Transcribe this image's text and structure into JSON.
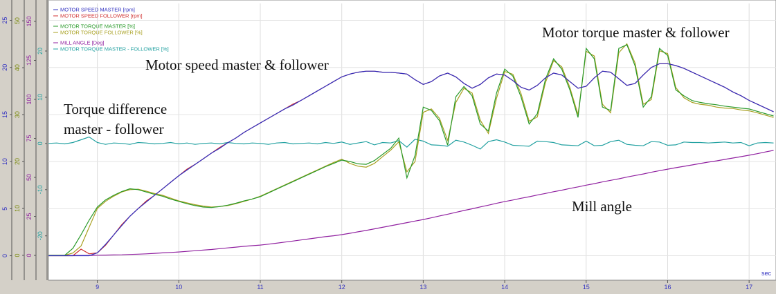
{
  "chart_data": {
    "type": "line",
    "x_label": "sec",
    "annotations": [
      "Motor speed master & follower",
      "Torque difference",
      "master - follower",
      "Motor torque master & follower",
      "Mill angle"
    ],
    "xlim": [
      8.4,
      17.33
    ],
    "xticks": [
      9,
      10,
      11,
      12,
      13,
      14,
      15,
      16,
      17
    ],
    "grid": true,
    "y_axes": [
      {
        "color": "#3030c0",
        "ylim": [
          -2.6,
          26.8
        ],
        "yticks": [
          0,
          5,
          10,
          15,
          20,
          25
        ]
      },
      {
        "color": "#7a8a10",
        "ylim": [
          -5.3,
          53.7
        ],
        "yticks": [
          0,
          10,
          20,
          30,
          40,
          50
        ]
      },
      {
        "color": "#9020a0",
        "ylim": [
          -15.9,
          161.5
        ],
        "yticks": [
          0,
          25,
          50,
          75,
          100,
          125,
          150
        ]
      },
      {
        "color": "#20a0a0",
        "ylim": [
          -29.6,
          30.3
        ],
        "yticks": [
          -20,
          -10,
          0,
          10,
          20
        ]
      }
    ],
    "x": [
      8.4,
      8.5,
      8.6,
      8.7,
      8.8,
      8.9,
      9.0,
      9.1,
      9.2,
      9.3,
      9.4,
      9.5,
      9.6,
      9.7,
      9.8,
      9.9,
      10.0,
      10.1,
      10.2,
      10.3,
      10.4,
      10.5,
      10.6,
      10.7,
      10.8,
      10.9,
      11.0,
      11.1,
      11.2,
      11.3,
      11.4,
      11.5,
      11.6,
      11.7,
      11.8,
      11.9,
      12.0,
      12.1,
      12.2,
      12.3,
      12.4,
      12.5,
      12.6,
      12.7,
      12.8,
      12.9,
      13.0,
      13.1,
      13.2,
      13.3,
      13.4,
      13.5,
      13.6,
      13.7,
      13.8,
      13.9,
      14.0,
      14.1,
      14.2,
      14.3,
      14.4,
      14.5,
      14.6,
      14.7,
      14.8,
      14.9,
      15.0,
      15.1,
      15.2,
      15.3,
      15.4,
      15.5,
      15.6,
      15.7,
      15.8,
      15.9,
      16.0,
      16.1,
      16.2,
      16.3,
      16.4,
      16.5,
      16.6,
      16.7,
      16.8,
      16.9,
      17.0,
      17.1,
      17.2,
      17.3
    ],
    "series": [
      {
        "name": "MOTOR SPEED MASTER [rpm]",
        "color": "#3030c0",
        "axis": 0,
        "values": [
          0,
          0,
          0,
          0,
          0,
          0,
          0.3,
          1.2,
          2.2,
          3.2,
          4.2,
          5.0,
          5.7,
          6.4,
          7.1,
          7.8,
          8.5,
          9.1,
          9.7,
          10.3,
          10.9,
          11.4,
          12.0,
          12.5,
          13.1,
          13.6,
          14.1,
          14.6,
          15.1,
          15.6,
          16.0,
          16.5,
          17.0,
          17.5,
          18.0,
          18.5,
          19.0,
          19.3,
          19.5,
          19.6,
          19.6,
          19.5,
          19.5,
          19.4,
          19.3,
          18.7,
          18.2,
          18.5,
          19.1,
          19.4,
          19.0,
          18.3,
          17.8,
          18.2,
          18.9,
          19.3,
          19.2,
          18.6,
          17.9,
          17.6,
          18.1,
          18.9,
          19.4,
          19.2,
          18.5,
          17.8,
          18.0,
          18.9,
          19.6,
          19.5,
          18.8,
          18.1,
          18.3,
          19.2,
          20.0,
          20.4,
          20.4,
          20.2,
          19.9,
          19.5,
          19.1,
          18.7,
          18.3,
          17.9,
          17.4,
          17.0,
          16.5,
          16.1,
          15.7,
          15.3
        ]
      },
      {
        "name": "MOTOR SPEED FOLLOWER [rpm]",
        "color": "#d03030",
        "axis": 0,
        "values": [
          0,
          0,
          0,
          0,
          0.7,
          0.2,
          0.3,
          1.1,
          2.2,
          3.3,
          4.2,
          5.0,
          5.8,
          6.4,
          7.1,
          7.8,
          8.5,
          9.2,
          9.7,
          10.3,
          10.9,
          11.5,
          12.0,
          12.5,
          13.1,
          13.6,
          14.1,
          14.6,
          15.1,
          15.6,
          16.1,
          16.5,
          17.0,
          17.5,
          18.0,
          18.5,
          19.0,
          19.3,
          19.5,
          19.6,
          19.6,
          19.5,
          19.5,
          19.4,
          19.3,
          18.7,
          18.2,
          18.5,
          19.1,
          19.4,
          19.0,
          18.3,
          17.8,
          18.2,
          18.9,
          19.3,
          19.2,
          18.6,
          17.9,
          17.6,
          18.1,
          18.9,
          19.4,
          19.2,
          18.5,
          17.8,
          18.0,
          18.9,
          19.6,
          19.5,
          18.8,
          18.1,
          18.3,
          19.2,
          20.0,
          20.4,
          20.4,
          20.2,
          19.9,
          19.5,
          19.1,
          18.7,
          18.3,
          17.9,
          17.4,
          17.0,
          16.5,
          16.1,
          15.7,
          15.3
        ]
      },
      {
        "name": "MOTOR TORQUE MASTER [%]",
        "color": "#2a9a2a",
        "axis": 1,
        "values": [
          0,
          0,
          0,
          1.5,
          4.4,
          7.5,
          10.3,
          11.8,
          12.8,
          13.6,
          14.2,
          14.0,
          13.5,
          13.0,
          12.6,
          12.0,
          11.5,
          11.0,
          10.6,
          10.3,
          10.2,
          10.4,
          10.7,
          11.1,
          11.6,
          12.0,
          12.5,
          13.3,
          14.1,
          14.9,
          15.7,
          16.5,
          17.3,
          18.1,
          18.9,
          19.6,
          20.3,
          20.0,
          19.5,
          19.4,
          20.2,
          21.5,
          22.8,
          25.0,
          16.5,
          21.3,
          31.6,
          30.9,
          28.7,
          23.5,
          33.8,
          36.0,
          34.0,
          28.0,
          26.5,
          34.6,
          39.7,
          38.2,
          33.8,
          28.0,
          30.2,
          37.5,
          41.9,
          39.7,
          35.3,
          29.4,
          44.1,
          41.9,
          31.6,
          30.9,
          44.1,
          44.9,
          40.4,
          31.6,
          33.8,
          44.1,
          42.6,
          35.3,
          34.0,
          33.0,
          32.6,
          32.3,
          32.1,
          31.8,
          31.6,
          31.4,
          31.2,
          30.7,
          30.2,
          29.7
        ]
      },
      {
        "name": "MOTOR TORQUE FOLLOWER [%]",
        "color": "#a8a020",
        "axis": 1,
        "values": [
          0,
          0,
          0,
          0.5,
          2.0,
          6.0,
          10.0,
          11.5,
          12.6,
          13.5,
          14.0,
          14.1,
          13.7,
          13.2,
          12.8,
          12.2,
          11.6,
          11.2,
          10.8,
          10.5,
          10.3,
          10.4,
          10.6,
          11.0,
          11.5,
          12.0,
          12.6,
          13.4,
          14.2,
          15.0,
          15.8,
          16.6,
          17.4,
          18.2,
          19.0,
          19.8,
          20.5,
          19.6,
          19.0,
          18.8,
          19.6,
          21.0,
          22.4,
          24.2,
          17.8,
          20.0,
          30.5,
          31.2,
          29.2,
          24.5,
          32.6,
          35.6,
          34.6,
          28.8,
          26.0,
          33.5,
          39.2,
          38.6,
          34.5,
          28.6,
          29.5,
          36.8,
          41.5,
          40.2,
          35.8,
          30.0,
          43.5,
          42.5,
          32.2,
          30.4,
          43.2,
          45.1,
          41.0,
          32.2,
          33.2,
          43.6,
          43.0,
          35.8,
          33.6,
          32.6,
          32.2,
          32.0,
          31.6,
          31.4,
          31.3,
          31.0,
          30.8,
          30.4,
          29.9,
          29.4
        ]
      },
      {
        "name": "MILL ANGLE [Deg]",
        "color": "#9020a0",
        "axis": 2,
        "values": [
          0,
          0,
          0,
          0,
          0,
          0,
          0.1,
          0.2,
          0.3,
          0.4,
          0.6,
          0.8,
          1.0,
          1.3,
          1.6,
          1.9,
          2.2,
          2.6,
          3.0,
          3.4,
          3.8,
          4.3,
          4.8,
          5.3,
          5.8,
          6.2,
          6.6,
          7.2,
          7.8,
          8.5,
          9.2,
          9.9,
          10.6,
          11.3,
          12.0,
          12.6,
          13.3,
          14.2,
          15.1,
          16.0,
          17.0,
          18.0,
          19.0,
          20.0,
          21.0,
          22.0,
          23.0,
          24.1,
          25.3,
          26.4,
          27.6,
          28.8,
          29.9,
          31.1,
          32.2,
          33.4,
          34.5,
          35.5,
          36.6,
          37.6,
          38.7,
          39.7,
          40.8,
          41.8,
          42.9,
          43.9,
          45.0,
          46.0,
          47.1,
          48.1,
          49.1,
          50.2,
          51.2,
          52.2,
          53.3,
          54.3,
          55.3,
          56.2,
          57.1,
          58.0,
          58.9,
          59.8,
          60.6,
          61.5,
          62.4,
          63.3,
          64.2,
          65.2,
          66.3,
          67.3
        ]
      },
      {
        "name": "MOTOR TORQUE MASTER - FOLLOWER [%]",
        "color": "#20a0a0",
        "axis": 3,
        "values": [
          0,
          0.1,
          -0.1,
          0.2,
          0.8,
          1.4,
          0.2,
          -0.2,
          0.1,
          0,
          -0.2,
          0.2,
          0.1,
          -0.1,
          0,
          0.2,
          -0.1,
          0.1,
          -0.2,
          0,
          0.1,
          -0.1,
          0.2,
          0,
          -0.1,
          0.1,
          0,
          -0.2,
          0.1,
          0.2,
          -0.1,
          0,
          0.1,
          -0.1,
          0.2,
          0,
          0.3,
          -0.2,
          0.1,
          0.4,
          -0.3,
          0.2,
          0.1,
          0.6,
          -0.8,
          0.9,
          0.5,
          -0.3,
          -0.4,
          -0.6,
          0.7,
          0.3,
          -0.4,
          -1.2,
          0.4,
          0.8,
          0.3,
          -0.4,
          -0.5,
          -0.6,
          0.5,
          0.4,
          0.2,
          -0.3,
          -0.4,
          -0.5,
          0.5,
          -0.5,
          -0.4,
          0.4,
          0.7,
          -0.2,
          -0.4,
          -0.5,
          0.4,
          0.3,
          -0.4,
          -0.3,
          0.3,
          0.2,
          0.2,
          0.1,
          0.2,
          0.3,
          0.1,
          0.2,
          -0.5,
          0.1,
          0.2,
          0.1
        ]
      }
    ]
  }
}
